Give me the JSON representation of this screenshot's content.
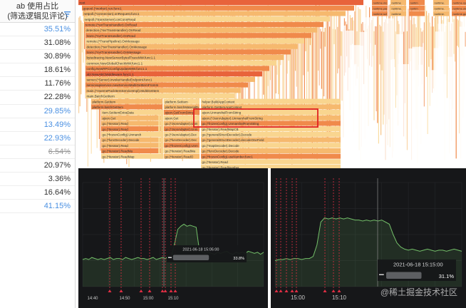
{
  "table": {
    "header_line1": "ab 使用占比",
    "header_line2": "(筛选逻辑见评论)",
    "rows": [
      {
        "value": "35.51%",
        "style": "blue"
      },
      {
        "value": "31.08%",
        "style": "normal"
      },
      {
        "value": "30.89%",
        "style": "normal"
      },
      {
        "value": "18.61%",
        "style": "normal"
      },
      {
        "value": "11.76%",
        "style": "normal"
      },
      {
        "value": "22.28%",
        "style": "normal"
      },
      {
        "value": "29.85%",
        "style": "blue"
      },
      {
        "value": "13.49%",
        "style": "blue"
      },
      {
        "value": "22.93%",
        "style": "blue"
      },
      {
        "value": "6.54%",
        "style": "strike"
      },
      {
        "value": "20.97%",
        "style": "normal"
      },
      {
        "value": "3.36%",
        "style": "normal"
      },
      {
        "value": "16.64%",
        "style": "normal"
      },
      {
        "value": "41.15%",
        "style": "blue"
      }
    ]
  },
  "flame": {
    "colors": {
      "deep": "#e8633b",
      "mid": "#f08a4b",
      "light": "#f6b96e",
      "pale": "#f9d58f",
      "highlight": "#e02020"
    },
    "rows": [
      {
        "full": "root",
        "right": [
          "runtime.mcall",
          "runtime",
          "runtim",
          "runtime.",
          "runtime.systemsta"
        ]
      },
      {
        "full": "gopool.(*worker).run.func1",
        "right": [
          "runtime.park_m",
          "runtime.",
          "runtim",
          "runtime.",
          "runtime.stopthe"
        ]
      },
      {
        "full": "netpoll.(*connection).onRequest.func1",
        "right": [
          "runtime.schedule",
          "runtime",
          "",
          "runtime.",
          "runtime.gcBgMa"
        ]
      },
      {
        "full": "netpoll.(*transServer).onConnRead",
        "right": []
      },
      {
        "full": "remote.(*svrTransHandler).OnRead",
        "right": []
      },
      {
        "full": "detection.(*svrTransHandler).OnRead",
        "right": []
      },
      {
        "full": "trans.(*svrTransHandler).OnRead",
        "right": []
      },
      {
        "full": "remote.(*TransPipeline).OnMessage",
        "right": []
      },
      {
        "full": "detection.(*svrTransHandler).OnMessage",
        "right": []
      },
      {
        "full": "trans.(*svrTransHandler).OnMessage",
        "right": []
      },
      {
        "full": "bytedtracing.NewServerBytedTraceMW.func1.1",
        "right": []
      },
      {
        "full": "common.NewGlobalCheckMW.func1.1",
        "right": []
      },
      {
        "full": "config.NewRPCConfigUpdateMW.func1.1",
        "right": []
      },
      {
        "full": "ab/.NewABCMiddleware.func1.1",
        "right": []
      },
      {
        "full": "server.(*Server).invokeHandleEndpoint.func1",
        "right": []
      },
      {
        "full": "serviceapiservice.newServiceMultiGetItemFromIn",
        "right": []
      },
      {
        "full": "main.(*AwemePackItemServiceImpl).MultiGetItem",
        "right": []
      },
      {
        "full": "main.BatchGetItem",
        "right": []
      }
    ],
    "lower_left": [
      "platform.GetItem",
      "platform.batchGetItem",
      "item.SetItemExtraData",
      "ajson.Get",
      "go.(*Iterator).Read",
      "go.(*Iterator).Read",
      "go.(*frozenConfig).Unmarsh",
      "go.(*funcDecoder).Decode",
      "go.(*Iterator).Read",
      "go.(*Iterator).ReadMa",
      "go.(*Iterator).ReadMap"
    ],
    "lower_mid": [
      "platform.SetItem",
      "platform.batchMaterialData",
      "ajson.GetFromString",
      "ajson.Get",
      "go.(*JsonAdapter).Unm",
      "go.(*JsonAdapter).Unm",
      "go.(*JsonAdapter).Dec",
      "go.(*funcDecoder).Dec",
      "go.(*frozenConfig).Unm",
      "go.(*Iterator).ReadMa",
      "go.(*Iterator).ReadO"
    ],
    "lower_right": [
      "helper.BuildAppContext",
      "platform.GetItemAppContext",
      "ajson.UnmarshalFromString",
      "ajson.(*JsonAdapter).UnmarshalFromString",
      "go.(*frozenConfig).UnmarshalFromString",
      "go.(*Iterator).ReadMapCB",
      "go.(*generalStructDecoder).Decode",
      "go.(*generalStructDecoder).decodeOneField",
      "go.(*mapDecoder).Decode",
      "go.(*funcDecoder).Decode",
      "go.(*frozenConfig).useNumber.func1",
      "go.(*Iterator).Read",
      "go.(*Iterator).ReadNumber"
    ]
  },
  "panels": {
    "left": {
      "ticks": [
        "14:40",
        "14:50",
        "15:00",
        "15:10"
      ],
      "tooltip_time": "2021-06-18 15:05:00",
      "tooltip_value": "33.8%",
      "series": {
        "color": "#73bf69",
        "ylim": [
          0,
          100
        ],
        "values": [
          26,
          27,
          26,
          28,
          27,
          26,
          27,
          26,
          27,
          28,
          26,
          27,
          27,
          26,
          28,
          27,
          26,
          27,
          28,
          27,
          27,
          26,
          27,
          28,
          26,
          27,
          28,
          27,
          29,
          30,
          42,
          55,
          58,
          60,
          58,
          59,
          58,
          57,
          36,
          33,
          32,
          33,
          32,
          31,
          33,
          32,
          33,
          34,
          32,
          31,
          33,
          32,
          33,
          32,
          34,
          33,
          32,
          33,
          31,
          33
        ]
      }
    },
    "right": {
      "ticks": [
        "15:00",
        "15:10"
      ],
      "tooltip_time": "2021-06-18 15:15:00",
      "tooltip_value": "31.1%",
      "series": {
        "color": "#73bf69",
        "ylim": [
          0,
          100
        ],
        "values": [
          25,
          26,
          26,
          27,
          26,
          27,
          27,
          26,
          27,
          27,
          29,
          40,
          62,
          66,
          65,
          66,
          65,
          66,
          65,
          66,
          65,
          64,
          64,
          63,
          64,
          63,
          64,
          63,
          64,
          62,
          60,
          50,
          42,
          38,
          36,
          35,
          36,
          35,
          34,
          35,
          36,
          35,
          34,
          35,
          35,
          34,
          35,
          36,
          35,
          34
        ]
      }
    }
  },
  "watermark": "@稀土掘金技术社区"
}
